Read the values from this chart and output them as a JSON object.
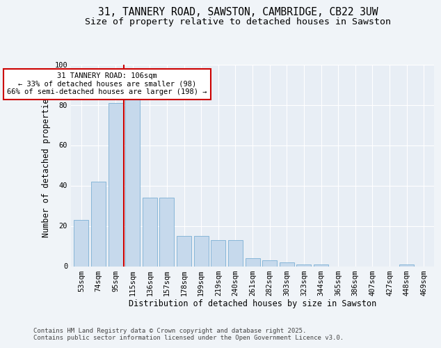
{
  "title_line1": "31, TANNERY ROAD, SAWSTON, CAMBRIDGE, CB22 3UW",
  "title_line2": "Size of property relative to detached houses in Sawston",
  "xlabel": "Distribution of detached houses by size in Sawston",
  "ylabel": "Number of detached properties",
  "categories": [
    "53sqm",
    "74sqm",
    "95sqm",
    "115sqm",
    "136sqm",
    "157sqm",
    "178sqm",
    "199sqm",
    "219sqm",
    "240sqm",
    "261sqm",
    "282sqm",
    "303sqm",
    "323sqm",
    "344sqm",
    "365sqm",
    "386sqm",
    "407sqm",
    "427sqm",
    "448sqm",
    "469sqm"
  ],
  "values": [
    23,
    42,
    81,
    84,
    34,
    34,
    15,
    15,
    13,
    13,
    4,
    3,
    2,
    1,
    1,
    0,
    0,
    0,
    0,
    1,
    0
  ],
  "bar_color": "#c6d9ec",
  "bar_edge_color": "#7bafd4",
  "vline_color": "#cc0000",
  "annotation_text": "31 TANNERY ROAD: 106sqm\n← 33% of detached houses are smaller (98)\n66% of semi-detached houses are larger (198) →",
  "annotation_box_color": "#cc0000",
  "ylim": [
    0,
    100
  ],
  "yticks": [
    0,
    20,
    40,
    60,
    80,
    100
  ],
  "plot_bg_color": "#e8eef5",
  "fig_bg_color": "#f0f4f8",
  "footer_line1": "Contains HM Land Registry data © Crown copyright and database right 2025.",
  "footer_line2": "Contains public sector information licensed under the Open Government Licence v3.0.",
  "title_fontsize": 10.5,
  "subtitle_fontsize": 9.5,
  "axis_label_fontsize": 8.5,
  "tick_fontsize": 7.5,
  "annotation_fontsize": 7.5,
  "footer_fontsize": 6.5
}
